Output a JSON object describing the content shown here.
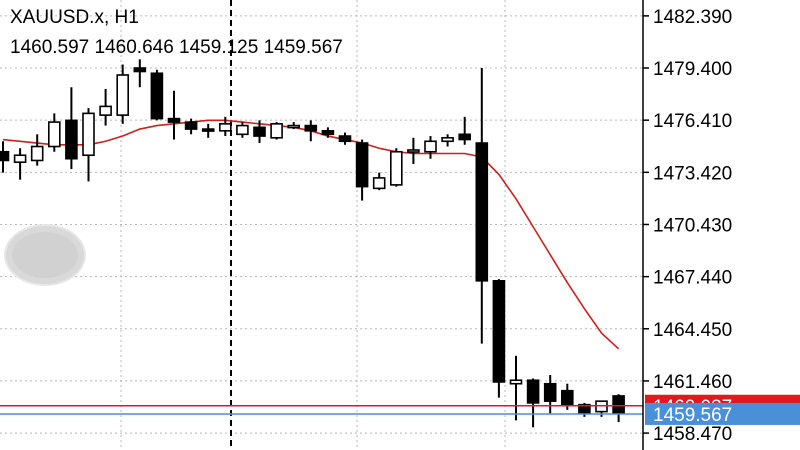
{
  "header": {
    "symbol_timeframe": "XAUUSD.x, H1",
    "ohlc": "1460.597 1460.646 1459.125 1459.567"
  },
  "colors": {
    "background": "#ffffff",
    "bull_fill": "#ffffff",
    "bear_fill": "#000000",
    "moving_average": "#cc1f1f",
    "ask_line": "#e0191c",
    "bid_line": "#4a90d9"
  },
  "chart_data": {
    "type": "candlestick",
    "symbol": "XAUUSD.x",
    "timeframe": "H1",
    "ylim": [
      1457.5,
      1483.3
    ],
    "y_ticks": [
      "1482.390",
      "1479.400",
      "1476.410",
      "1473.420",
      "1470.430",
      "1467.440",
      "1464.450",
      "1461.460",
      "1458.470"
    ],
    "grid": true,
    "candles": [
      {
        "o": 1474.6,
        "h": 1475.2,
        "l": 1473.4,
        "c": 1474.1
      },
      {
        "o": 1474.0,
        "h": 1474.8,
        "l": 1473.0,
        "c": 1474.4
      },
      {
        "o": 1474.1,
        "h": 1475.6,
        "l": 1473.8,
        "c": 1474.9
      },
      {
        "o": 1474.9,
        "h": 1476.8,
        "l": 1474.6,
        "c": 1476.3
      },
      {
        "o": 1476.4,
        "h": 1478.3,
        "l": 1473.6,
        "c": 1474.2
      },
      {
        "o": 1474.4,
        "h": 1477.1,
        "l": 1472.9,
        "c": 1476.8
      },
      {
        "o": 1476.7,
        "h": 1478.2,
        "l": 1476.1,
        "c": 1477.2
      },
      {
        "o": 1476.7,
        "h": 1479.6,
        "l": 1476.2,
        "c": 1479.0
      },
      {
        "o": 1479.4,
        "h": 1479.9,
        "l": 1478.3,
        "c": 1479.2
      },
      {
        "o": 1479.1,
        "h": 1479.3,
        "l": 1476.4,
        "c": 1476.5
      },
      {
        "o": 1476.5,
        "h": 1478.1,
        "l": 1475.3,
        "c": 1476.3
      },
      {
        "o": 1476.3,
        "h": 1476.5,
        "l": 1475.6,
        "c": 1475.9
      },
      {
        "o": 1475.9,
        "h": 1476.2,
        "l": 1475.4,
        "c": 1475.8
      },
      {
        "o": 1475.8,
        "h": 1476.6,
        "l": 1475.5,
        "c": 1476.2
      },
      {
        "o": 1475.6,
        "h": 1476.3,
        "l": 1475.4,
        "c": 1476.1
      },
      {
        "o": 1476.0,
        "h": 1476.4,
        "l": 1475.1,
        "c": 1475.5
      },
      {
        "o": 1475.4,
        "h": 1476.3,
        "l": 1475.3,
        "c": 1476.2
      },
      {
        "o": 1476.1,
        "h": 1476.3,
        "l": 1475.9,
        "c": 1476.1
      },
      {
        "o": 1476.1,
        "h": 1476.4,
        "l": 1475.2,
        "c": 1475.8
      },
      {
        "o": 1475.8,
        "h": 1476.0,
        "l": 1475.4,
        "c": 1475.6
      },
      {
        "o": 1475.5,
        "h": 1475.7,
        "l": 1475.0,
        "c": 1475.2
      },
      {
        "o": 1475.1,
        "h": 1475.3,
        "l": 1471.8,
        "c": 1472.6
      },
      {
        "o": 1472.5,
        "h": 1473.4,
        "l": 1472.4,
        "c": 1473.1
      },
      {
        "o": 1472.7,
        "h": 1474.8,
        "l": 1472.6,
        "c": 1474.6
      },
      {
        "o": 1474.6,
        "h": 1475.4,
        "l": 1473.9,
        "c": 1474.7
      },
      {
        "o": 1474.6,
        "h": 1475.5,
        "l": 1474.2,
        "c": 1475.2
      },
      {
        "o": 1475.2,
        "h": 1475.6,
        "l": 1474.9,
        "c": 1475.4
      },
      {
        "o": 1475.6,
        "h": 1476.6,
        "l": 1475.0,
        "c": 1475.3
      },
      {
        "o": 1475.1,
        "h": 1479.4,
        "l": 1463.6,
        "c": 1467.2
      },
      {
        "o": 1467.2,
        "h": 1467.3,
        "l": 1460.5,
        "c": 1461.4
      },
      {
        "o": 1461.3,
        "h": 1462.9,
        "l": 1459.2,
        "c": 1461.5
      },
      {
        "o": 1461.5,
        "h": 1461.6,
        "l": 1458.8,
        "c": 1460.2
      },
      {
        "o": 1461.3,
        "h": 1461.8,
        "l": 1459.6,
        "c": 1460.3
      },
      {
        "o": 1460.9,
        "h": 1461.3,
        "l": 1459.8,
        "c": 1460.1
      },
      {
        "o": 1460.1,
        "h": 1460.2,
        "l": 1459.4,
        "c": 1459.6
      },
      {
        "o": 1459.7,
        "h": 1460.3,
        "l": 1459.4,
        "c": 1460.3
      },
      {
        "o": 1460.6,
        "h": 1460.7,
        "l": 1459.1,
        "c": 1459.6
      }
    ],
    "moving_average": [
      1475.3,
      1475.2,
      1475.1,
      1475.0,
      1475.0,
      1475.0,
      1475.2,
      1475.5,
      1475.9,
      1476.1,
      1476.2,
      1476.3,
      1476.4,
      1476.4,
      1476.3,
      1476.2,
      1476.1,
      1476.0,
      1475.8,
      1475.5,
      1475.3,
      1475.1,
      1474.8,
      1474.6,
      1474.5,
      1474.5,
      1474.5,
      1474.5,
      1474.3,
      1473.3,
      1471.9,
      1470.3,
      1468.7,
      1467.1,
      1465.6,
      1464.2,
      1463.3
    ],
    "price_lines": {
      "ask": "1460.037",
      "bid": "1459.567"
    }
  }
}
